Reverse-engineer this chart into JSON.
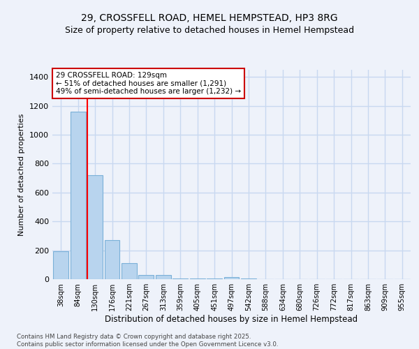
{
  "title_line1": "29, CROSSFELL ROAD, HEMEL HEMPSTEAD, HP3 8RG",
  "title_line2": "Size of property relative to detached houses in Hemel Hempstead",
  "xlabel": "Distribution of detached houses by size in Hemel Hempstead",
  "ylabel": "Number of detached properties",
  "categories": [
    "38sqm",
    "84sqm",
    "130sqm",
    "176sqm",
    "221sqm",
    "267sqm",
    "313sqm",
    "359sqm",
    "405sqm",
    "451sqm",
    "497sqm",
    "542sqm",
    "588sqm",
    "634sqm",
    "680sqm",
    "726sqm",
    "772sqm",
    "817sqm",
    "863sqm",
    "909sqm",
    "955sqm"
  ],
  "values": [
    195,
    1160,
    720,
    270,
    110,
    30,
    30,
    5,
    5,
    5,
    15,
    5,
    0,
    0,
    0,
    0,
    0,
    0,
    0,
    0,
    0
  ],
  "bar_color": "#b8d4ee",
  "bar_edge_color": "#7ab0d8",
  "red_line_bar_index": 2,
  "annotation_text": "29 CROSSFELL ROAD: 129sqm\n← 51% of detached houses are smaller (1,291)\n49% of semi-detached houses are larger (1,232) →",
  "annotation_box_color": "#ffffff",
  "annotation_box_edge_color": "#cc0000",
  "footer_text": "Contains HM Land Registry data © Crown copyright and database right 2025.\nContains public sector information licensed under the Open Government Licence v3.0.",
  "ylim": [
    0,
    1450
  ],
  "yticks": [
    0,
    200,
    400,
    600,
    800,
    1000,
    1200,
    1400
  ],
  "bg_color": "#eef2fa",
  "grid_color": "#c8d8f0",
  "title_fontsize": 10,
  "subtitle_fontsize": 9
}
